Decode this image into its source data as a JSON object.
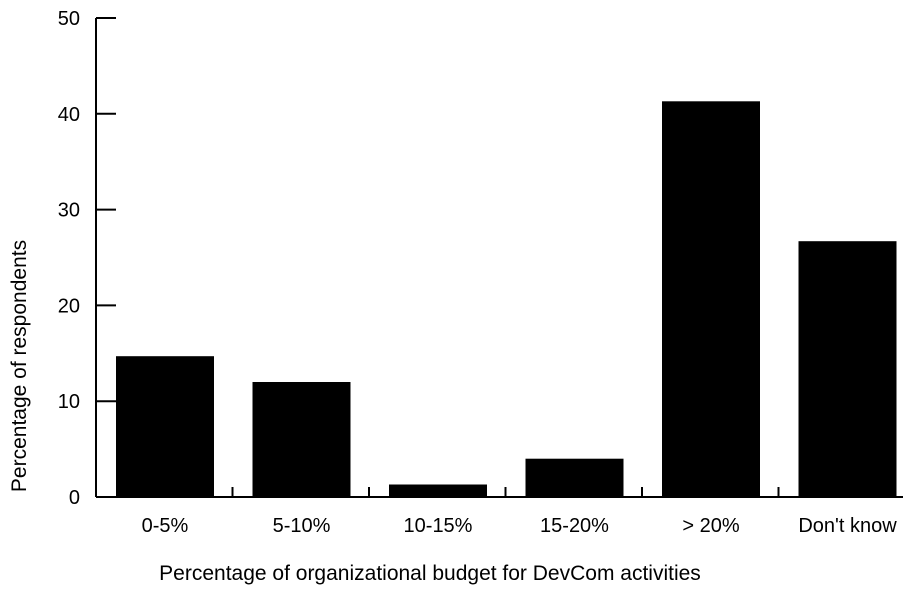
{
  "chart_data": {
    "type": "bar",
    "title": "",
    "xlabel": "Percentage of organizational budget for DevCom activities",
    "ylabel": "Percentage of respondents",
    "categories": [
      "0-5%",
      "5-10%",
      "10-15%",
      "15-20%",
      "> 20%",
      "Don't know"
    ],
    "values": [
      14.7,
      12.0,
      1.3,
      4.0,
      41.3,
      26.7
    ],
    "ylim": [
      0,
      50
    ],
    "yticks": [
      0,
      10,
      20,
      30,
      40,
      50
    ],
    "grid": false,
    "legend": "none",
    "colors": {
      "bar": "#000000",
      "axis": "#000000",
      "background": "#ffffff"
    }
  }
}
